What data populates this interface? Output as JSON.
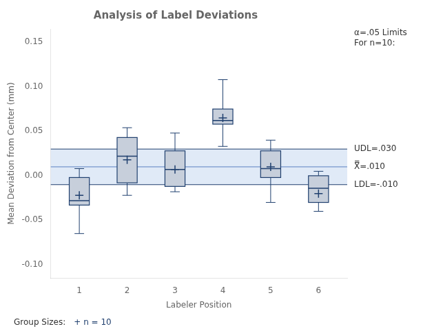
{
  "chart_data": {
    "type": "box",
    "title": "Analysis of Label Deviations",
    "xlabel": "Labeler Position",
    "ylabel": "Mean Deviation from Center (mm)",
    "x": [
      1,
      2,
      3,
      4,
      5,
      6
    ],
    "q1": [
      -0.033,
      -0.008,
      -0.012,
      0.058,
      -0.002,
      -0.03
    ],
    "median": [
      -0.028,
      0.022,
      0.007,
      0.062,
      0.008,
      -0.014
    ],
    "q3": [
      -0.002,
      0.043,
      0.028,
      0.075,
      0.028,
      0.0
    ],
    "whisker_low": [
      -0.065,
      -0.022,
      -0.018,
      0.033,
      -0.03,
      -0.04
    ],
    "whisker_high": [
      0.008,
      0.054,
      0.048,
      0.108,
      0.04,
      0.005
    ],
    "mean": [
      -0.022,
      0.018,
      0.007,
      0.065,
      0.01,
      -0.02
    ],
    "color": "#1f3f6e",
    "xlim": [
      0.4,
      6.6
    ],
    "xticks": [
      1,
      2,
      3,
      4,
      5,
      6
    ],
    "ylim": [
      -0.115,
      0.165
    ],
    "yticks": [
      {
        "value": -0.1,
        "label": "-0.10"
      },
      -0.05,
      {
        "value": 0.0,
        "label": "0.00"
      },
      0.05,
      {
        "value": 0.1,
        "label": "0.10"
      },
      0.15
    ],
    "grid": false,
    "band": {
      "low": -0.01,
      "high": 0.03,
      "color": "#c6d9f0"
    },
    "lines": [
      {
        "value": 0.03,
        "label": "UDL=.030",
        "color": "#1f3f6e"
      },
      {
        "value": 0.01,
        "label": "X̿=.010",
        "color": "#5a7fbf"
      },
      {
        "value": -0.01,
        "label": "LDL=-.010",
        "color": "#1f3f6e"
      }
    ],
    "note": "α=.05 Limits\nFor n=10:",
    "group_sizes": {
      "label": "Group Sizes:",
      "symbol": "+ n = 10"
    }
  }
}
